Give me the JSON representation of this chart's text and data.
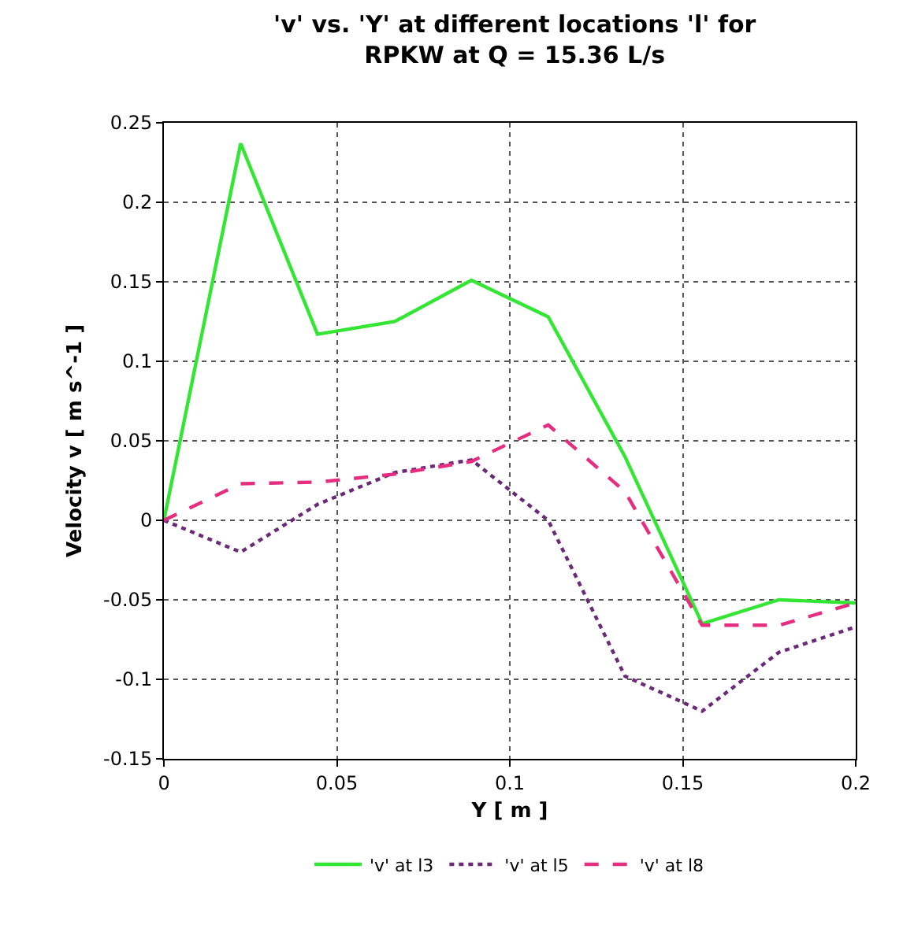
{
  "chart_data": {
    "type": "line",
    "title": "'v' vs. 'Y' at different locations 'l' for\nRPKW at Q = 15.36 L/s",
    "xlabel": "Y [ m ]",
    "ylabel": "Velocity v [ m s^-1 ]",
    "x": [
      0,
      0.0222,
      0.0444,
      0.0667,
      0.0889,
      0.1111,
      0.1333,
      0.1556,
      0.1778,
      0.2
    ],
    "series": [
      {
        "name": "'v' at l3",
        "color": "#33e633",
        "line_style": "solid",
        "values": [
          0,
          0.237,
          0.117,
          0.125,
          0.151,
          0.128,
          0.04,
          -0.065,
          -0.05,
          -0.052
        ]
      },
      {
        "name": "'v' at l5",
        "color": "#6b2a78",
        "line_style": "dotted",
        "values": [
          0,
          -0.02,
          0.01,
          0.03,
          0.038,
          0.0,
          -0.098,
          -0.12,
          -0.083,
          -0.067
        ]
      },
      {
        "name": "'v' at l8",
        "color": "#e62e80",
        "line_style": "dashed",
        "values": [
          0,
          0.023,
          0.024,
          0.029,
          0.037,
          0.06,
          0.018,
          -0.066,
          -0.066,
          -0.052
        ]
      }
    ],
    "xlim": [
      0,
      0.2
    ],
    "xticks": [
      0,
      0.05,
      0.1,
      0.15,
      0.2
    ],
    "ylim": [
      -0.15,
      0.25
    ],
    "yticks": [
      -0.15,
      -0.1,
      -0.05,
      0,
      0.05,
      0.1,
      0.15,
      0.2,
      0.25
    ],
    "grid": true,
    "legend": "bottom",
    "marker": "none"
  }
}
